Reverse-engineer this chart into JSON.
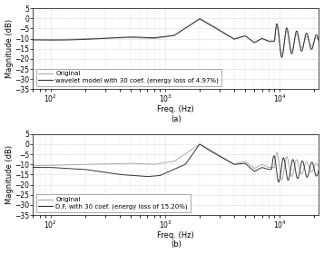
{
  "subplot_a": {
    "xlabel": "Freq. (Hz)",
    "ylabel": "Magnitude (dB)",
    "sublabel": "(a)",
    "ylim": [
      -35,
      5
    ],
    "yticks": [
      5,
      0,
      -5,
      -10,
      -15,
      -20,
      -25,
      -30,
      -35
    ],
    "xlim_log": [
      70,
      22000
    ],
    "legend": [
      "Original",
      "wavelet model with 30 coef. (energy loss of 4.97%)"
    ],
    "line1_color": "#aaaaaa",
    "line2_color": "#333333"
  },
  "subplot_b": {
    "xlabel": "Freq. (Hz)",
    "ylabel": "Magnitude (dB)",
    "sublabel": "(b)",
    "ylim": [
      -35,
      5
    ],
    "yticks": [
      5,
      0,
      -5,
      -10,
      -15,
      -20,
      -25,
      -30,
      -35
    ],
    "xlim_log": [
      70,
      22000
    ],
    "legend": [
      "Original",
      "D.F. with 30 coef. (energy loss of 15.20%)"
    ],
    "line1_color": "#aaaaaa",
    "line2_color": "#333333"
  },
  "bg_color": "#ffffff",
  "grid_color": "#bbbbbb",
  "fontsize": 6.0
}
